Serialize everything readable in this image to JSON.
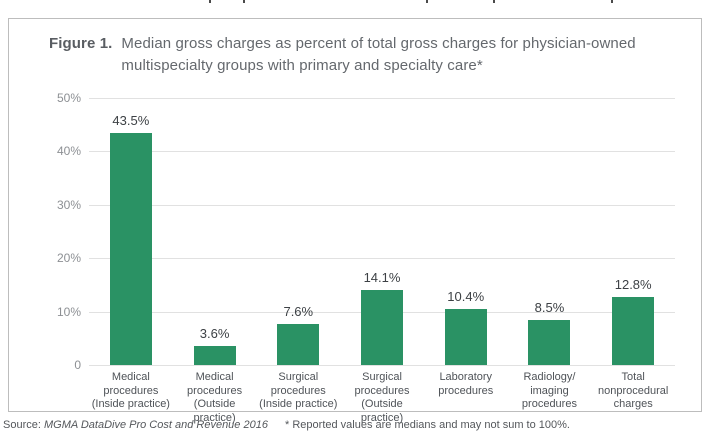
{
  "figure": {
    "label": "Figure 1.",
    "title_line1": "Median gross charges as percent of total gross charges for physician-owned",
    "title_line2": "multispecialty groups with primary and specialty care*"
  },
  "source": {
    "prefix": "Source: ",
    "citation": "MGMA DataDive Pro Cost and Revenue 2016",
    "footnote": "* Reported values are medians and may not sum to 100%."
  },
  "chart_data": {
    "type": "bar",
    "title": "Figure 1. Median gross charges as percent of total gross charges for physician-owned multispecialty groups with primary and specialty care*",
    "categories": [
      "Medical procedures (Inside practice)",
      "Medical procedures (Outside practice)",
      "Surgical procedures (Inside practice)",
      "Surgical procedures (Outside practice)",
      "Laboratory procedures",
      "Radiology/imaging procedures",
      "Total nonprocedural charges"
    ],
    "category_lines": [
      [
        "Medical",
        "procedures",
        "(Inside practice)"
      ],
      [
        "Medical",
        "procedures",
        "(Outside practice)"
      ],
      [
        "Surgical",
        "procedures",
        "(Inside practice)"
      ],
      [
        "Surgical",
        "procedures",
        "(Outside practice)"
      ],
      [
        "Laboratory",
        "procedures"
      ],
      [
        "Radiology/",
        "imaging",
        "procedures"
      ],
      [
        "Total",
        "nonprocedural",
        "charges"
      ]
    ],
    "values": [
      43.5,
      3.6,
      7.6,
      14.1,
      10.4,
      8.5,
      12.8
    ],
    "value_labels": [
      "43.5%",
      "3.6%",
      "7.6%",
      "14.1%",
      "10.4%",
      "8.5%",
      "12.8%"
    ],
    "xlabel": "",
    "ylabel": "",
    "ylim": [
      0,
      50
    ],
    "yticks": [
      {
        "label": "50%",
        "value": 50
      },
      {
        "label": "40%",
        "value": 40
      },
      {
        "label": "30%",
        "value": 30
      },
      {
        "label": "20%",
        "value": 20
      },
      {
        "label": "10%",
        "value": 10
      },
      {
        "label": "0",
        "value": 0
      }
    ],
    "grid": true,
    "legend": false,
    "bar_color": "#2a9264"
  }
}
